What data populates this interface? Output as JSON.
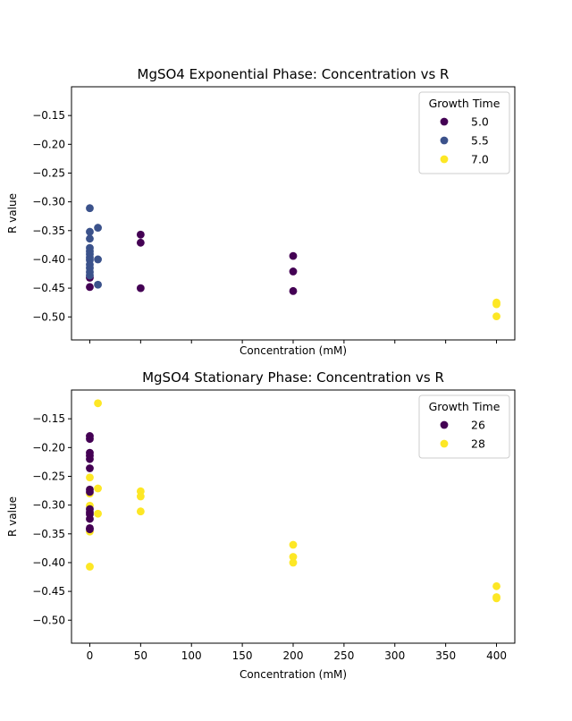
{
  "chart_data": [
    {
      "type": "scatter",
      "title": "MgSO4 Exponential Phase: Concentration vs R",
      "xlabel": "Concentration (mM)",
      "ylabel": "R value",
      "xlim": [
        -18,
        418
      ],
      "ylim": [
        -0.54,
        -0.1
      ],
      "xticks": [
        0,
        50,
        100,
        150,
        200,
        250,
        300,
        350,
        400
      ],
      "show_xticklabels": false,
      "yticks": [
        -0.5,
        -0.45,
        -0.4,
        -0.35,
        -0.3,
        -0.25,
        -0.2,
        -0.15
      ],
      "ytick_labels": [
        "−0.50",
        "−0.45",
        "−0.40",
        "−0.35",
        "−0.30",
        "−0.25",
        "−0.20",
        "−0.15"
      ],
      "grid": false,
      "legend": {
        "title": "Growth Time",
        "placement": "top-right",
        "entries": [
          {
            "label": "5.0",
            "color": "#440154"
          },
          {
            "label": "5.5",
            "color": "#3b528b"
          },
          {
            "label": "7.0",
            "color": "#fde725"
          }
        ]
      },
      "series": [
        {
          "label": "5.0",
          "color": "#440154",
          "points": [
            [
              0,
              -0.432
            ],
            [
              0,
              -0.448
            ],
            [
              50,
              -0.357
            ],
            [
              50,
              -0.371
            ],
            [
              50,
              -0.45
            ],
            [
              200,
              -0.394
            ],
            [
              200,
              -0.421
            ],
            [
              200,
              -0.455
            ]
          ]
        },
        {
          "label": "5.5",
          "color": "#3b528b",
          "points": [
            [
              0,
              -0.311
            ],
            [
              0,
              -0.352
            ],
            [
              0,
              -0.364
            ],
            [
              0,
              -0.38
            ],
            [
              0,
              -0.386
            ],
            [
              0,
              -0.391
            ],
            [
              0,
              -0.397
            ],
            [
              0,
              -0.401
            ],
            [
              0,
              -0.409
            ],
            [
              0,
              -0.415
            ],
            [
              0,
              -0.422
            ],
            [
              0,
              -0.428
            ],
            [
              8,
              -0.345
            ],
            [
              8,
              -0.4
            ],
            [
              8,
              -0.444
            ]
          ]
        },
        {
          "label": "7.0",
          "color": "#fde725",
          "points": [
            [
              400,
              -0.475
            ],
            [
              400,
              -0.478
            ],
            [
              400,
              -0.499
            ]
          ]
        }
      ]
    },
    {
      "type": "scatter",
      "title": "MgSO4 Stationary Phase: Concentration vs R",
      "xlabel": "Concentration (mM)",
      "ylabel": "R value",
      "xlim": [
        -18,
        418
      ],
      "ylim": [
        -0.54,
        -0.1
      ],
      "xticks": [
        0,
        50,
        100,
        150,
        200,
        250,
        300,
        350,
        400
      ],
      "xtick_labels": [
        "0",
        "50",
        "100",
        "150",
        "200",
        "250",
        "300",
        "350",
        "400"
      ],
      "show_xticklabels": true,
      "yticks": [
        -0.5,
        -0.45,
        -0.4,
        -0.35,
        -0.3,
        -0.25,
        -0.2,
        -0.15
      ],
      "ytick_labels": [
        "−0.50",
        "−0.45",
        "−0.40",
        "−0.35",
        "−0.30",
        "−0.25",
        "−0.20",
        "−0.15"
      ],
      "grid": false,
      "legend": {
        "title": "Growth Time",
        "placement": "top-right",
        "entries": [
          {
            "label": "26",
            "color": "#440154"
          },
          {
            "label": "28",
            "color": "#fde725"
          }
        ]
      },
      "series": [
        {
          "label": "28",
          "color": "#fde725",
          "points": [
            [
              8,
              -0.123
            ],
            [
              8,
              -0.271
            ],
            [
              8,
              -0.315
            ],
            [
              0,
              -0.252
            ],
            [
              0,
              -0.28
            ],
            [
              0,
              -0.301
            ],
            [
              0,
              -0.346
            ],
            [
              0,
              -0.407
            ],
            [
              50,
              -0.276
            ],
            [
              50,
              -0.285
            ],
            [
              50,
              -0.311
            ],
            [
              200,
              -0.369
            ],
            [
              200,
              -0.39
            ],
            [
              200,
              -0.4
            ],
            [
              400,
              -0.441
            ],
            [
              400,
              -0.46
            ],
            [
              400,
              -0.462
            ]
          ]
        },
        {
          "label": "26",
          "color": "#440154",
          "points": [
            [
              0,
              -0.18
            ],
            [
              0,
              -0.185
            ],
            [
              0,
              -0.209
            ],
            [
              0,
              -0.214
            ],
            [
              0,
              -0.22
            ],
            [
              0,
              -0.236
            ],
            [
              0,
              -0.273
            ],
            [
              0,
              -0.277
            ],
            [
              0,
              -0.307
            ],
            [
              0,
              -0.312
            ],
            [
              0,
              -0.316
            ],
            [
              0,
              -0.324
            ],
            [
              0,
              -0.34
            ],
            [
              0,
              -0.342
            ]
          ]
        }
      ]
    }
  ]
}
